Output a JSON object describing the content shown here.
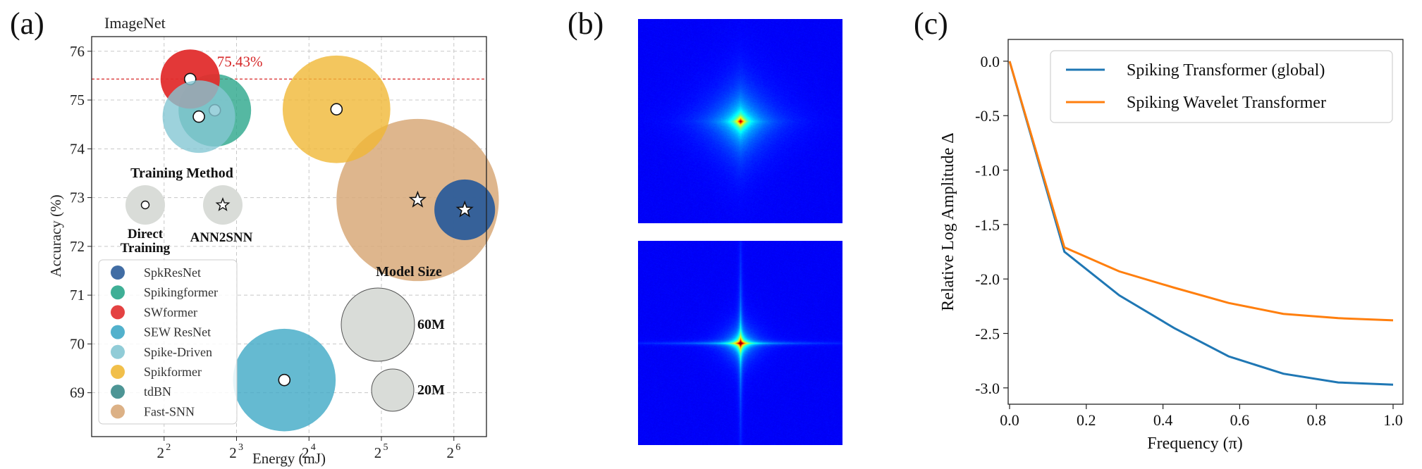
{
  "panels": {
    "a": {
      "letter": "(a)"
    },
    "b": {
      "letter": "(b)"
    },
    "c": {
      "letter": "(c)"
    }
  },
  "chart_data": [
    {
      "id": "a",
      "type": "scatter",
      "title": "ImageNet",
      "xlabel": "Energy (mJ)",
      "ylabel": "Accuracy (%)",
      "x_scale": "log2",
      "xlim_log2": [
        1.0,
        6.45
      ],
      "ylim": [
        68.1,
        76.3
      ],
      "x_ticks": [
        {
          "exp": 2,
          "base": "2",
          "sup": "2"
        },
        {
          "exp": 3,
          "base": "2",
          "sup": "3"
        },
        {
          "exp": 4,
          "base": "2",
          "sup": "4"
        },
        {
          "exp": 5,
          "base": "2",
          "sup": "5"
        },
        {
          "exp": 6,
          "base": "2",
          "sup": "6"
        }
      ],
      "y_ticks": [
        69,
        70,
        71,
        72,
        73,
        74,
        75,
        76
      ],
      "grid": true,
      "reference_line": {
        "y": 75.43,
        "label": "75.43%",
        "color": "#d62728"
      },
      "colors": {
        "SpkResNet": "#2c5d9a",
        "Spikingformer": "#2aa68b",
        "SWformer": "#e12d2d",
        "SEW ResNet": "#3fa9c6",
        "Spike-Driven": "#85c7d3",
        "Spikformer": "#f0b836",
        "tdBN": "#3a8a8a",
        "Fast-SNN": "#d8a979",
        "neutral": "#d9dcd8"
      },
      "series": [
        {
          "name": "SpkResNet",
          "x_log2": 6.15,
          "y": 72.75,
          "size_m": 21,
          "marker": "star"
        },
        {
          "name": "Spikingformer",
          "x_log2": 2.7,
          "y": 74.79,
          "size_m": 30,
          "marker": "circle"
        },
        {
          "name": "SWformer",
          "x_log2": 2.36,
          "y": 75.43,
          "size_m": 20,
          "marker": "circle"
        },
        {
          "name": "SEW ResNet",
          "x_log2": 3.66,
          "y": 69.26,
          "size_m": 60,
          "marker": "circle"
        },
        {
          "name": "Spike-Driven",
          "x_log2": 2.48,
          "y": 74.66,
          "size_m": 30,
          "marker": "circle"
        },
        {
          "name": "Spikformer",
          "x_log2": 4.38,
          "y": 74.81,
          "size_m": 66,
          "marker": "circle"
        },
        {
          "name": "tdBN",
          "x_log2": null,
          "y": null,
          "size_m": null,
          "marker": "circle"
        },
        {
          "name": "Fast-SNN",
          "x_log2": 5.5,
          "y": 72.95,
          "size_m": 150,
          "marker": "star"
        }
      ],
      "legend_training": {
        "title": "Training Method",
        "direct_line1": "Direct",
        "direct_line2": "Training",
        "ann2snn": "ANN2SNN"
      },
      "legend_size": {
        "title": "Model Size",
        "items": [
          {
            "label": "60M",
            "size_m": 60
          },
          {
            "label": "20M",
            "size_m": 20
          }
        ]
      },
      "legend_placement": "lower-left"
    },
    {
      "id": "b",
      "type": "heatmap",
      "colormap": "jet",
      "images": [
        {
          "spread_x": 0.22,
          "spread_y": 0.22,
          "cross": 0.0
        },
        {
          "spread_x": 0.12,
          "spread_y": 0.12,
          "cross": 0.35
        }
      ]
    },
    {
      "id": "c",
      "type": "line",
      "xlabel": "Frequency (π)",
      "ylabel": "Relative Log Amplitude Δ",
      "xlim": [
        0.0,
        1.0
      ],
      "ylim": [
        -3.15,
        0.2
      ],
      "x_ticks": [
        "0.0",
        "0.2",
        "0.4",
        "0.6",
        "0.8",
        "1.0"
      ],
      "y_ticks": [
        "0.0",
        "-0.5",
        "-1.0",
        "-1.5",
        "-2.0",
        "-2.5",
        "-3.0"
      ],
      "legend_placement": "top-right",
      "x": [
        0.0,
        0.143,
        0.286,
        0.429,
        0.571,
        0.714,
        0.857,
        1.0
      ],
      "series": [
        {
          "name": "Spiking Transformer (global)",
          "color": "#1f77b4",
          "values": [
            0.0,
            -1.75,
            -2.15,
            -2.45,
            -2.71,
            -2.87,
            -2.95,
            -2.97
          ]
        },
        {
          "name": "Spiking Wavelet Transformer",
          "color": "#ff7f0e",
          "values": [
            0.0,
            -1.71,
            -1.93,
            -2.08,
            -2.22,
            -2.32,
            -2.36,
            -2.38
          ]
        }
      ]
    }
  ]
}
